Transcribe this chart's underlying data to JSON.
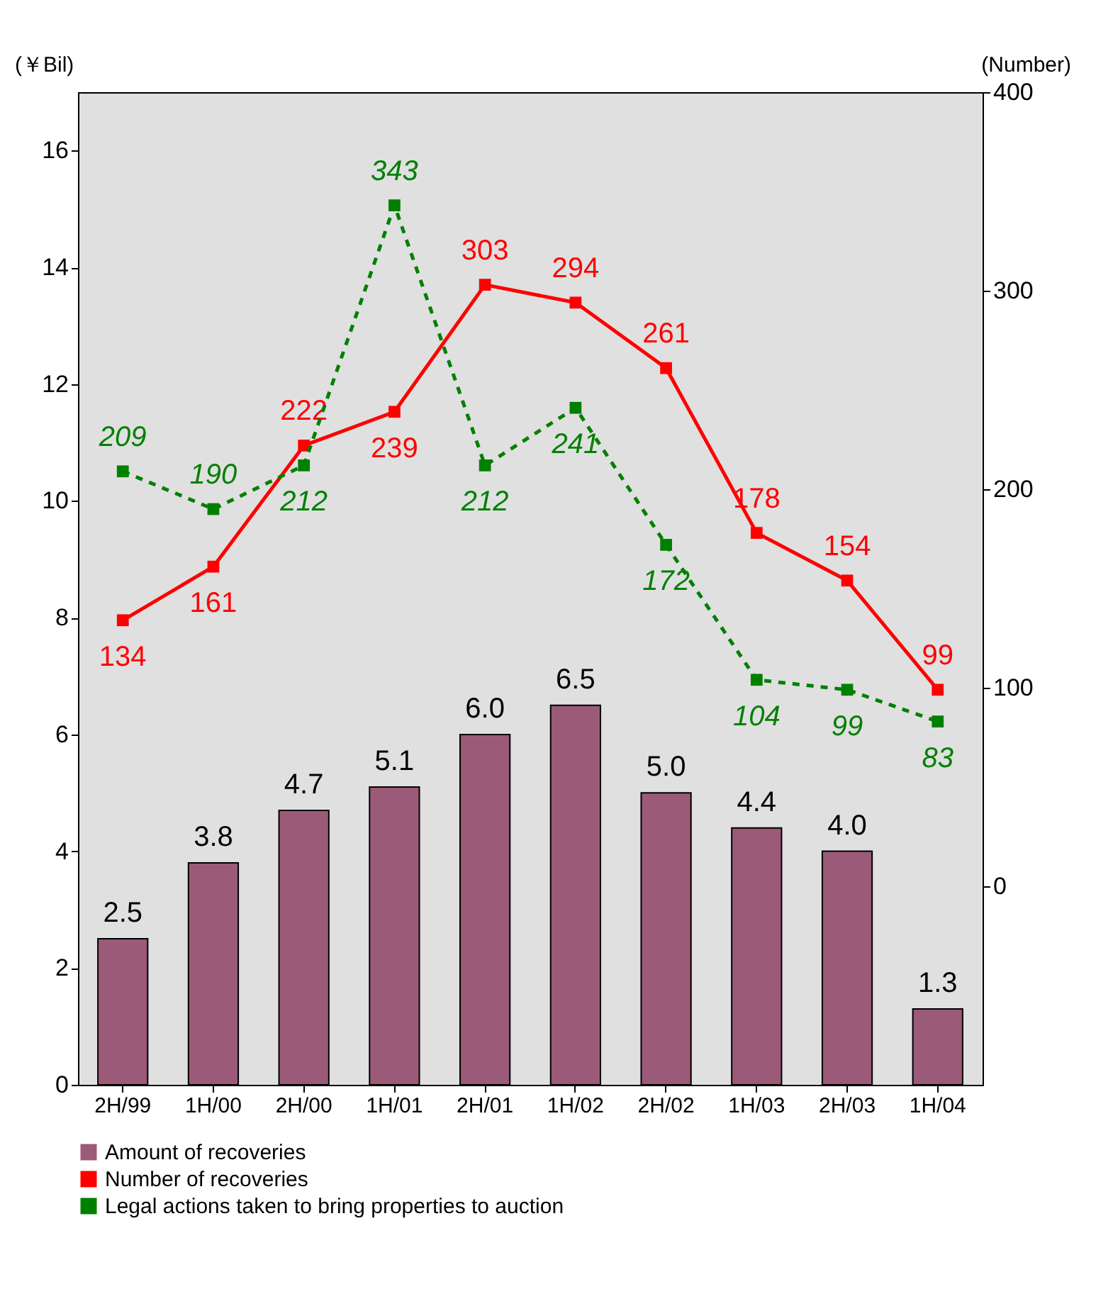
{
  "chart_data": {
    "type": "bar",
    "categories": [
      "2H/99",
      "1H/00",
      "2H/00",
      "1H/01",
      "2H/01",
      "1H/02",
      "2H/02",
      "1H/03",
      "2H/03",
      "1H/04"
    ],
    "ylabel": "(￥Bil)",
    "y2label": "(Number)",
    "ylim": [
      0,
      17
    ],
    "yticks": [
      0,
      2,
      4,
      6,
      8,
      10,
      12,
      14,
      16
    ],
    "y2lim": [
      -100,
      400
    ],
    "y2ticks": [
      0,
      100,
      200,
      300,
      400
    ],
    "grid": false,
    "legend": "bottom",
    "data_labels": true,
    "marker": "square",
    "series": [
      {
        "name": "Amount of recoveries",
        "color": "#9b5a78",
        "values": [
          2.5,
          3.8,
          4.7,
          5.1,
          6.0,
          6.5,
          5.0,
          4.4,
          4.0,
          1.3
        ],
        "value_labels": [
          "2.5",
          "3.8",
          "4.7",
          "5.1",
          "6.0",
          "6.5",
          "5.0",
          "4.4",
          "4.0",
          "1.3"
        ]
      },
      {
        "name": "Number of recoveries",
        "type": "line",
        "axis": "y2",
        "color": "#ff0000",
        "line_style": "solid",
        "values": [
          134,
          161,
          222,
          239,
          303,
          294,
          261,
          178,
          154,
          99
        ]
      },
      {
        "name": "Legal actions taken to bring properties to auction",
        "type": "line",
        "axis": "y2",
        "color": "#008000",
        "line_style": "dashed",
        "values": [
          209,
          190,
          212,
          343,
          212,
          241,
          172,
          104,
          99,
          83
        ]
      }
    ]
  }
}
